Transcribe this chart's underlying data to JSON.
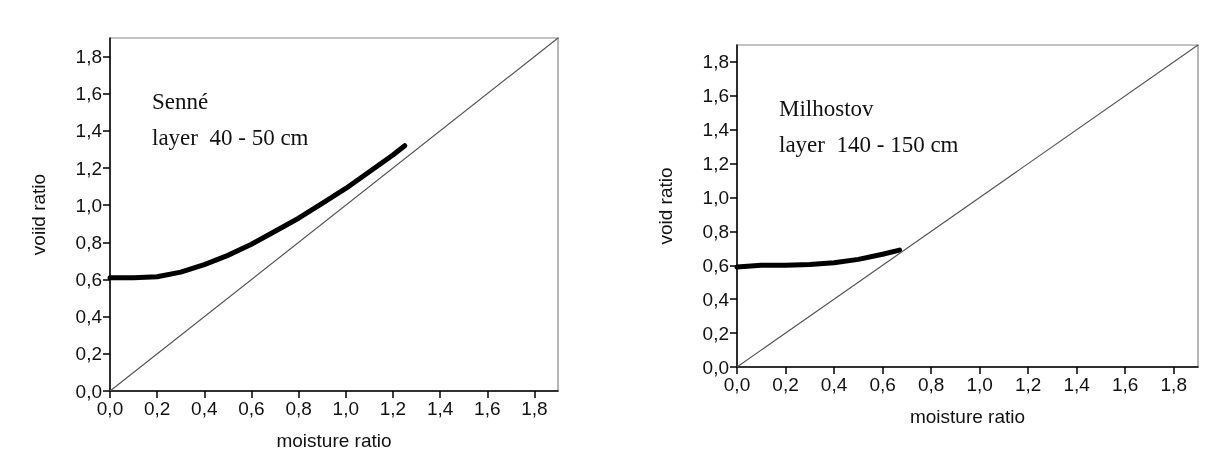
{
  "chart_data": [
    {
      "type": "line",
      "xlabel": "moisture ratio",
      "ylabel": "voiid ratio",
      "annotations": [
        "Senné",
        "layer  40 - 50 cm"
      ],
      "xlim": [
        0,
        1.9
      ],
      "ylim": [
        0,
        1.9
      ],
      "xticks": [
        {
          "value": 0,
          "label": "0,0"
        },
        {
          "value": 0.2,
          "label": "0,2"
        },
        {
          "value": 0.4,
          "label": "0,4"
        },
        {
          "value": 0.6,
          "label": "0,6"
        },
        {
          "value": 0.8,
          "label": "0,8"
        },
        {
          "value": 1.0,
          "label": "1,0"
        },
        {
          "value": 1.2,
          "label": "1,2"
        },
        {
          "value": 1.4,
          "label": "1,4"
        },
        {
          "value": 1.6,
          "label": "1,6"
        },
        {
          "value": 1.8,
          "label": "1,8"
        }
      ],
      "yticks": [
        {
          "value": 0,
          "label": "0,0"
        },
        {
          "value": 0.2,
          "label": "0,2"
        },
        {
          "value": 0.4,
          "label": "0,4"
        },
        {
          "value": 0.6,
          "label": "0,6"
        },
        {
          "value": 0.8,
          "label": "0,8"
        },
        {
          "value": 1.0,
          "label": "1,0"
        },
        {
          "value": 1.2,
          "label": "1,2"
        },
        {
          "value": 1.4,
          "label": "1,4"
        },
        {
          "value": 1.6,
          "label": "1,6"
        },
        {
          "value": 1.8,
          "label": "1,8"
        }
      ],
      "grid": false,
      "marker": "none",
      "line_style": "solid",
      "series": [
        {
          "color": "#000000",
          "x": [
            0,
            0.1,
            0.2,
            0.3,
            0.4,
            0.5,
            0.6,
            0.7,
            0.8,
            0.9,
            1.0,
            1.1,
            1.2,
            1.25
          ],
          "values": [
            0.61,
            0.61,
            0.615,
            0.64,
            0.68,
            0.73,
            0.79,
            0.86,
            0.93,
            1.01,
            1.09,
            1.18,
            1.27,
            1.32
          ]
        },
        {
          "color": "#555555",
          "x": [
            0,
            1.9
          ],
          "values": [
            0,
            1.9
          ]
        }
      ]
    },
    {
      "type": "line",
      "xlabel": "moisture ratio",
      "ylabel": "void ratio",
      "annotations": [
        "Milhostov",
        "layer  140 - 150 cm"
      ],
      "xlim": [
        0,
        1.9
      ],
      "ylim": [
        0,
        1.9
      ],
      "xticks": [
        {
          "value": 0,
          "label": "0,0"
        },
        {
          "value": 0.2,
          "label": "0,2"
        },
        {
          "value": 0.4,
          "label": "0,4"
        },
        {
          "value": 0.6,
          "label": "0,6"
        },
        {
          "value": 0.8,
          "label": "0,8"
        },
        {
          "value": 1.0,
          "label": "1,0"
        },
        {
          "value": 1.2,
          "label": "1,2"
        },
        {
          "value": 1.4,
          "label": "1,4"
        },
        {
          "value": 1.6,
          "label": "1,6"
        },
        {
          "value": 1.8,
          "label": "1,8"
        }
      ],
      "yticks": [
        {
          "value": 0,
          "label": "0,0"
        },
        {
          "value": 0.2,
          "label": "0,2"
        },
        {
          "value": 0.4,
          "label": "0,4"
        },
        {
          "value": 0.6,
          "label": "0,6"
        },
        {
          "value": 0.8,
          "label": "0,8"
        },
        {
          "value": 1.0,
          "label": "1,0"
        },
        {
          "value": 1.2,
          "label": "1,2"
        },
        {
          "value": 1.4,
          "label": "1,4"
        },
        {
          "value": 1.6,
          "label": "1,6"
        },
        {
          "value": 1.8,
          "label": "1,8"
        }
      ],
      "grid": false,
      "marker": "none",
      "line_style": "solid",
      "series": [
        {
          "color": "#000000",
          "x": [
            0,
            0.1,
            0.2,
            0.3,
            0.4,
            0.5,
            0.6,
            0.67
          ],
          "values": [
            0.59,
            0.6,
            0.6,
            0.605,
            0.615,
            0.635,
            0.665,
            0.69
          ]
        },
        {
          "color": "#555555",
          "x": [
            0,
            1.9
          ],
          "values": [
            0,
            1.9
          ]
        }
      ]
    }
  ]
}
